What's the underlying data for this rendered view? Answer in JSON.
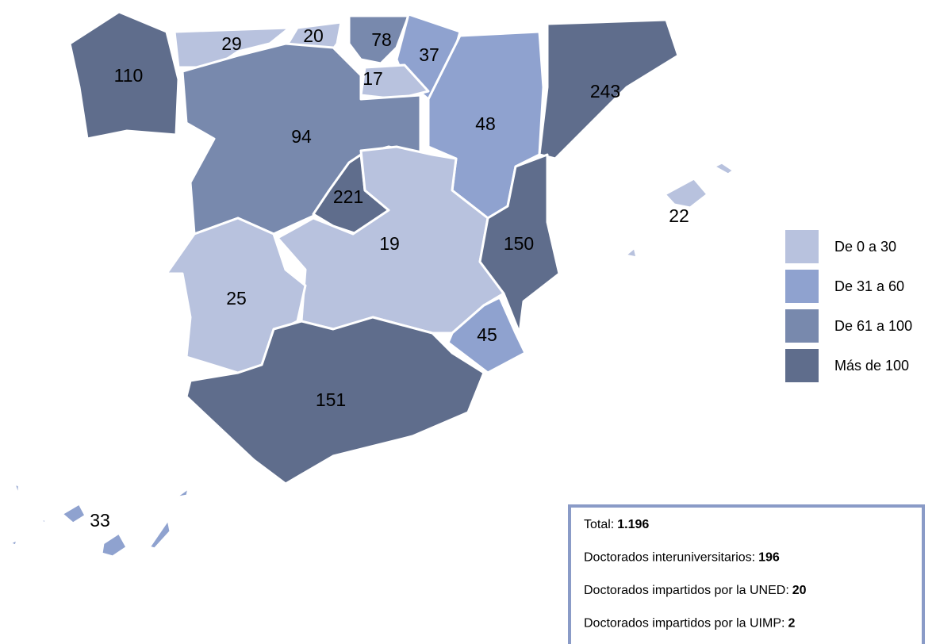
{
  "map": {
    "regions": [
      {
        "value": 110,
        "color": "#5f6d8c"
      },
      {
        "value": 29,
        "color": "#b8c2de"
      },
      {
        "value": 20,
        "color": "#b8c2de"
      },
      {
        "value": 78,
        "color": "#7889ad"
      },
      {
        "value": 37,
        "color": "#8fa2cf"
      },
      {
        "value": 17,
        "color": "#b8c2de"
      },
      {
        "value": 94,
        "color": "#7889ad"
      },
      {
        "value": 221,
        "color": "#5f6d8c"
      },
      {
        "value": 48,
        "color": "#8fa2cf"
      },
      {
        "value": 243,
        "color": "#5f6d8c"
      },
      {
        "value": 19,
        "color": "#b8c2de"
      },
      {
        "value": 150,
        "color": "#5f6d8c"
      },
      {
        "value": 45,
        "color": "#8fa2cf"
      },
      {
        "value": 25,
        "color": "#b8c2de"
      },
      {
        "value": 151,
        "color": "#5f6d8c"
      },
      {
        "value": 22,
        "color": "#b8c2de"
      },
      {
        "value": 33,
        "color": "#8fa2cf"
      }
    ],
    "legend": [
      {
        "label": "De 0 a 30",
        "color": "#b8c2de"
      },
      {
        "label": "De 31 a 60",
        "color": "#8fa2cf"
      },
      {
        "label": "De 61 a 100",
        "color": "#7889ad"
      },
      {
        "label": "Más de 100",
        "color": "#5f6d8c"
      }
    ],
    "info": [
      {
        "label": "Total:",
        "value": "1.196"
      },
      {
        "label": "Doctorados interuniversitarios:",
        "value": "196"
      },
      {
        "label": "Doctorados impartidos por la UNED:",
        "value": "20"
      },
      {
        "label": "Doctorados impartidos por la UIMP:",
        "value": "2"
      }
    ]
  }
}
